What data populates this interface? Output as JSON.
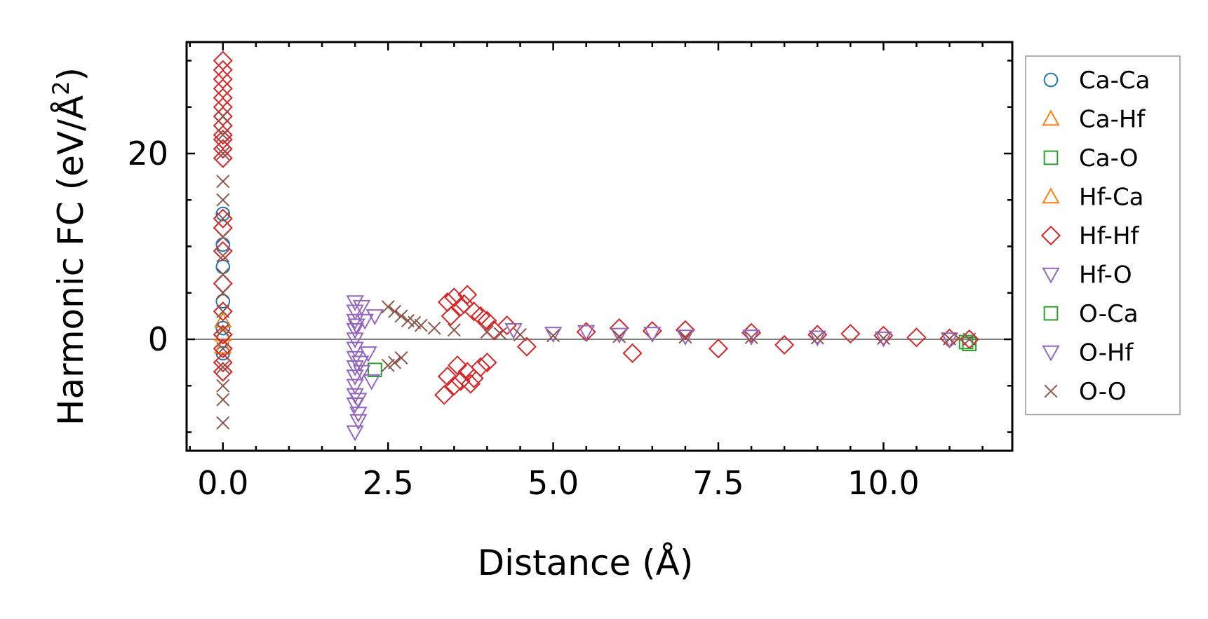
{
  "chart_data": {
    "type": "scatter",
    "title": "",
    "xlabel": "Distance (Å)",
    "ylabel": {
      "main": "Harmonic FC (eV/Å",
      "superscript": "2",
      "close": ")"
    },
    "xlim": [
      -0.55,
      11.95
    ],
    "ylim": [
      -12,
      32
    ],
    "x_ticks": [
      {
        "value": 0.0,
        "label": "0.0"
      },
      {
        "value": 2.5,
        "label": "2.5"
      },
      {
        "value": 5.0,
        "label": "5.0"
      },
      {
        "value": 7.5,
        "label": "7.5"
      },
      {
        "value": 10.0,
        "label": "10.0"
      }
    ],
    "x_minor_step": 0.5,
    "y_ticks": [
      {
        "value": 0,
        "label": "0"
      },
      {
        "value": 20,
        "label": "20"
      }
    ],
    "y_minor_step": 5,
    "zero_line": true,
    "grid": false,
    "legend_position": "right-outside",
    "series": [
      {
        "name": "Ca-Ca",
        "marker": "circle",
        "color": "#1f77b4",
        "points": [
          [
            0.0,
            13.5
          ],
          [
            0.0,
            10.2
          ],
          [
            0.0,
            7.8
          ],
          [
            0.0,
            4.1
          ],
          [
            0.0,
            1.2
          ],
          [
            0.0,
            -1.5
          ]
        ]
      },
      {
        "name": "Ca-Hf",
        "marker": "triangle-up",
        "color": "#ff7f0e",
        "points": [
          [
            0.0,
            2.0
          ],
          [
            0.0,
            -0.8
          ]
        ]
      },
      {
        "name": "Ca-O",
        "marker": "square",
        "color": "#2ca02c",
        "points": [
          [
            2.3,
            -3.3
          ],
          [
            11.3,
            -0.5
          ]
        ]
      },
      {
        "name": "Hf-Ca",
        "marker": "triangle-up",
        "color": "#ff7f0e",
        "points": [
          [
            0.0,
            0.5
          ]
        ]
      },
      {
        "name": "Hf-Hf",
        "marker": "diamond",
        "color": "#d62728",
        "points": [
          [
            0.0,
            30.0
          ],
          [
            0.0,
            29.0
          ],
          [
            0.0,
            28.0
          ],
          [
            0.0,
            27.0
          ],
          [
            0.0,
            26.0
          ],
          [
            0.0,
            25.0
          ],
          [
            0.0,
            24.0
          ],
          [
            0.0,
            23.0
          ],
          [
            0.0,
            22.0
          ],
          [
            0.0,
            21.5
          ],
          [
            0.0,
            20.5
          ],
          [
            0.0,
            19.5
          ],
          [
            0.0,
            13.0
          ],
          [
            0.0,
            12.0
          ],
          [
            0.0,
            9.5
          ],
          [
            0.0,
            6.0
          ],
          [
            0.0,
            3.0
          ],
          [
            0.0,
            0.5
          ],
          [
            0.0,
            -1.0
          ],
          [
            0.0,
            -2.5
          ],
          [
            0.0,
            -3.5
          ],
          [
            3.4,
            4.0
          ],
          [
            3.5,
            4.5
          ],
          [
            3.6,
            3.5
          ],
          [
            3.7,
            4.8
          ],
          [
            3.8,
            3.0
          ],
          [
            3.9,
            2.5
          ],
          [
            4.0,
            2.0
          ],
          [
            4.1,
            1.0
          ],
          [
            3.4,
            -4.0
          ],
          [
            3.5,
            -5.0
          ],
          [
            3.6,
            -4.5
          ],
          [
            3.7,
            -3.5
          ],
          [
            3.8,
            -4.2
          ],
          [
            3.9,
            -3.0
          ],
          [
            4.0,
            -2.5
          ],
          [
            3.35,
            -6.0
          ],
          [
            3.45,
            2.5
          ],
          [
            3.55,
            -2.8
          ],
          [
            3.65,
            3.8
          ],
          [
            3.75,
            -4.8
          ],
          [
            4.3,
            1.5
          ],
          [
            4.6,
            -0.8
          ],
          [
            5.5,
            0.8
          ],
          [
            6.0,
            1.2
          ],
          [
            6.2,
            -1.5
          ],
          [
            6.5,
            0.9
          ],
          [
            7.0,
            1.0
          ],
          [
            7.5,
            -1.0
          ],
          [
            8.0,
            0.7
          ],
          [
            8.5,
            -0.6
          ],
          [
            9.0,
            0.5
          ],
          [
            9.5,
            0.6
          ],
          [
            10.0,
            0.4
          ],
          [
            10.5,
            0.2
          ],
          [
            11.0,
            0.1
          ],
          [
            11.3,
            0.0
          ]
        ]
      },
      {
        "name": "Hf-O",
        "marker": "triangle-down",
        "color": "#9467bd",
        "points": [
          [
            2.0,
            4.0
          ],
          [
            2.0,
            3.0
          ],
          [
            2.0,
            2.0
          ],
          [
            2.0,
            1.0
          ],
          [
            2.0,
            0.0
          ],
          [
            2.0,
            -1.0
          ],
          [
            2.0,
            -2.0
          ],
          [
            2.0,
            -3.0
          ],
          [
            2.0,
            -4.0
          ],
          [
            2.0,
            -5.0
          ],
          [
            2.0,
            -6.0
          ],
          [
            2.0,
            -7.0
          ],
          [
            2.05,
            -8.0
          ],
          [
            2.05,
            -8.8
          ],
          [
            2.0,
            -10.0
          ],
          [
            2.1,
            3.5
          ],
          [
            2.15,
            2.0
          ],
          [
            2.2,
            -1.5
          ],
          [
            2.25,
            -4.5
          ],
          [
            2.3,
            2.5
          ],
          [
            4.4,
            1.0
          ],
          [
            5.0,
            0.6
          ],
          [
            5.5,
            0.8
          ],
          [
            6.0,
            0.5
          ],
          [
            6.5,
            0.6
          ],
          [
            7.0,
            0.3
          ],
          [
            8.0,
            0.3
          ],
          [
            9.0,
            0.2
          ],
          [
            10.0,
            0.1
          ],
          [
            11.0,
            0.0
          ]
        ]
      },
      {
        "name": "O-Ca",
        "marker": "square",
        "color": "#2ca02c",
        "points": [
          [
            11.25,
            -0.3
          ]
        ]
      },
      {
        "name": "O-Hf",
        "marker": "triangle-down",
        "color": "#9467bd",
        "points": [
          [
            2.05,
            -6.5
          ],
          [
            2.1,
            -3.5
          ],
          [
            2.02,
            1.5
          ],
          [
            2.08,
            -2.5
          ]
        ]
      },
      {
        "name": "O-O",
        "marker": "x",
        "color": "#8c564b",
        "points": [
          [
            0.0,
            24.0
          ],
          [
            0.0,
            22.0
          ],
          [
            0.0,
            20.0
          ],
          [
            0.0,
            17.0
          ],
          [
            0.0,
            15.0
          ],
          [
            0.0,
            13.0
          ],
          [
            0.0,
            11.0
          ],
          [
            0.0,
            9.0
          ],
          [
            0.0,
            7.0
          ],
          [
            0.0,
            5.0
          ],
          [
            0.0,
            3.0
          ],
          [
            0.0,
            1.0
          ],
          [
            0.0,
            -1.0
          ],
          [
            0.0,
            -3.0
          ],
          [
            0.0,
            -5.0
          ],
          [
            0.0,
            -6.5
          ],
          [
            0.0,
            -9.0
          ],
          [
            2.5,
            3.5
          ],
          [
            2.5,
            -2.8
          ],
          [
            2.6,
            3.0
          ],
          [
            2.6,
            -2.5
          ],
          [
            2.7,
            2.5
          ],
          [
            2.7,
            -2.0
          ],
          [
            2.8,
            2.0
          ],
          [
            2.9,
            1.8
          ],
          [
            3.0,
            1.5
          ],
          [
            3.2,
            1.2
          ],
          [
            3.5,
            1.0
          ],
          [
            4.0,
            0.8
          ],
          [
            4.2,
            0.6
          ],
          [
            4.5,
            0.5
          ],
          [
            5.0,
            0.4
          ],
          [
            6.0,
            0.3
          ],
          [
            7.0,
            0.25
          ],
          [
            8.0,
            0.2
          ],
          [
            9.0,
            0.15
          ],
          [
            10.0,
            0.1
          ],
          [
            11.0,
            0.05
          ],
          [
            11.3,
            0.0
          ]
        ]
      }
    ]
  }
}
